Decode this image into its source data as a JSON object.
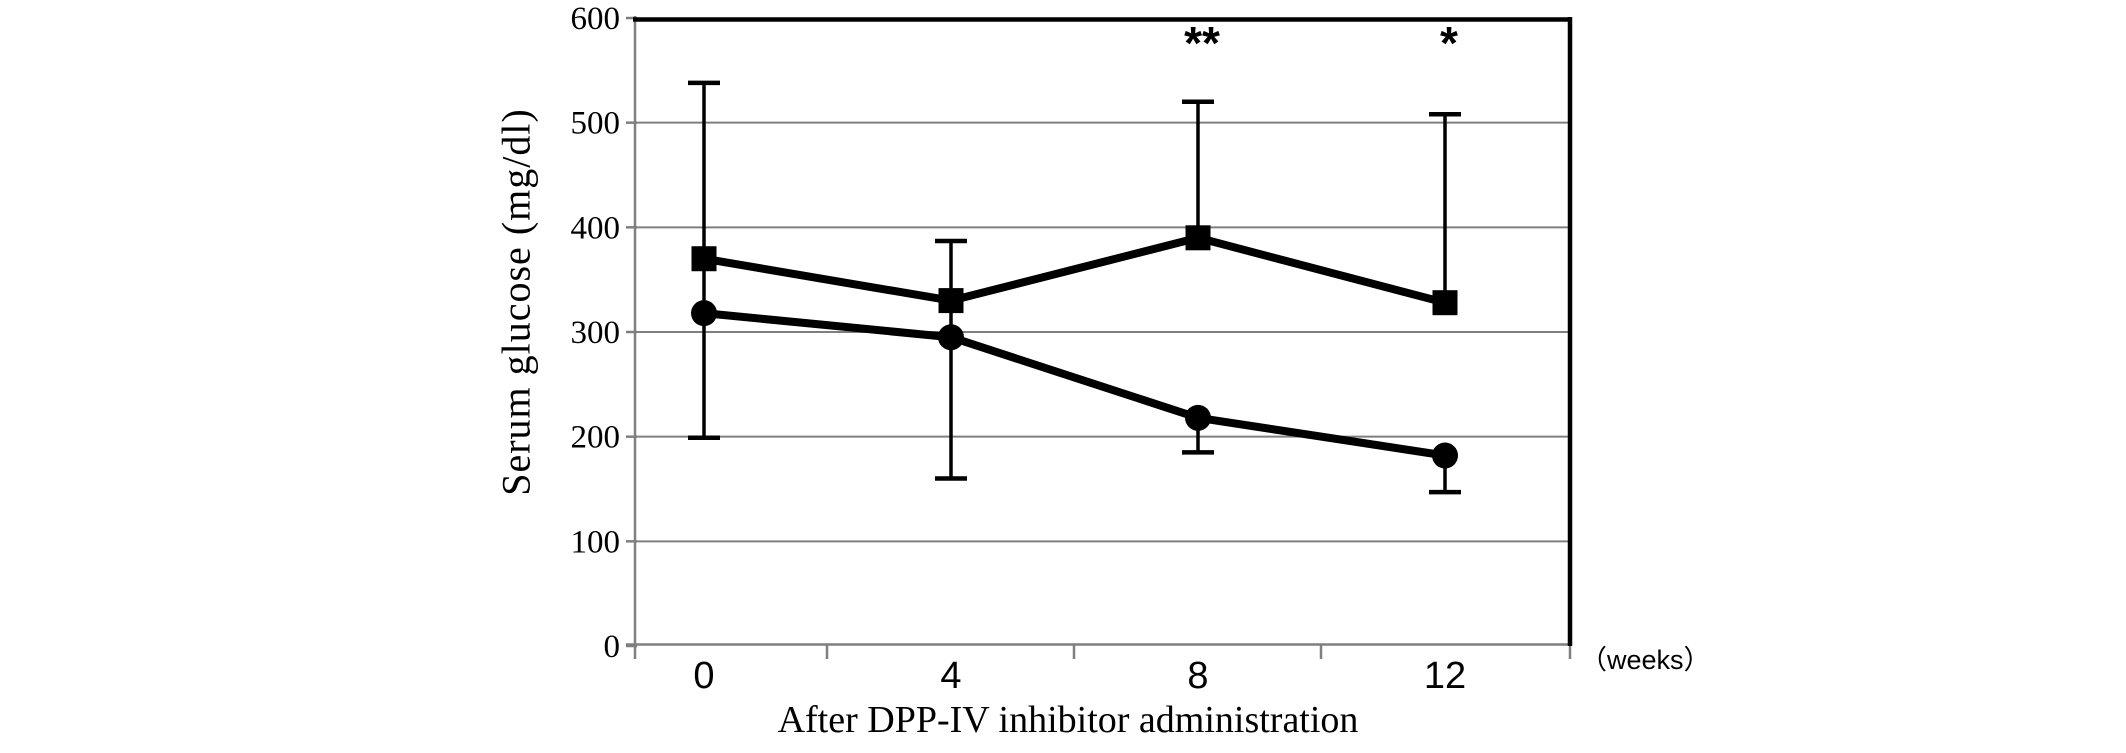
{
  "page": {
    "background": "#ffffff"
  },
  "chart_data": {
    "type": "line",
    "title": "",
    "xlabel": "After DPP-IV inhibitor administration",
    "ylabel": "Serum glucose (mg/dl)",
    "x_unit_label": "（weeks）",
    "categories": [
      0,
      4,
      8,
      12
    ],
    "x_tick_labels": [
      "0",
      "4",
      "8",
      "12"
    ],
    "y_ticks": [
      0,
      100,
      200,
      300,
      400,
      500,
      600
    ],
    "y_tick_labels": [
      "0",
      "100",
      "200",
      "300",
      "400",
      "500",
      "600"
    ],
    "ylim": [
      0,
      600
    ],
    "grid": "horizontal gridlines every 100 mg/dl",
    "legend_position": "none",
    "series": [
      {
        "name": "filled-square-series",
        "marker": "square",
        "color": "#000000",
        "values": [
          370,
          330,
          390,
          328
        ]
      },
      {
        "name": "filled-circle-series",
        "marker": "circle",
        "color": "#000000",
        "values": [
          318,
          295,
          218,
          182
        ]
      }
    ],
    "error_bars": [
      {
        "week": 0,
        "from": 199,
        "to": 538,
        "cap_top": true,
        "cap_bottom": true
      },
      {
        "week": 4,
        "from": 160,
        "to": 387,
        "cap_top": true,
        "cap_bottom": true
      },
      {
        "week": 8,
        "from": 390,
        "to": 520,
        "cap_top": true,
        "cap_bottom": false
      },
      {
        "week": 8,
        "from": 185,
        "to": 218,
        "cap_top": false,
        "cap_bottom": true
      },
      {
        "week": 12,
        "from": 328,
        "to": 508,
        "cap_top": true,
        "cap_bottom": false
      },
      {
        "week": 12,
        "from": 147,
        "to": 182,
        "cap_top": false,
        "cap_bottom": true
      }
    ],
    "annotations": [
      {
        "text": "**",
        "week": 8,
        "value": 580
      },
      {
        "text": "*",
        "week": 12,
        "value": 580
      }
    ]
  },
  "colors": {
    "series_line": "#000000",
    "error_bar": "#000000",
    "gridline": "#7f7f7f",
    "axis_line": "#7f7f7f",
    "plot_border": "#000000",
    "text": "#000000",
    "background": "#ffffff"
  }
}
